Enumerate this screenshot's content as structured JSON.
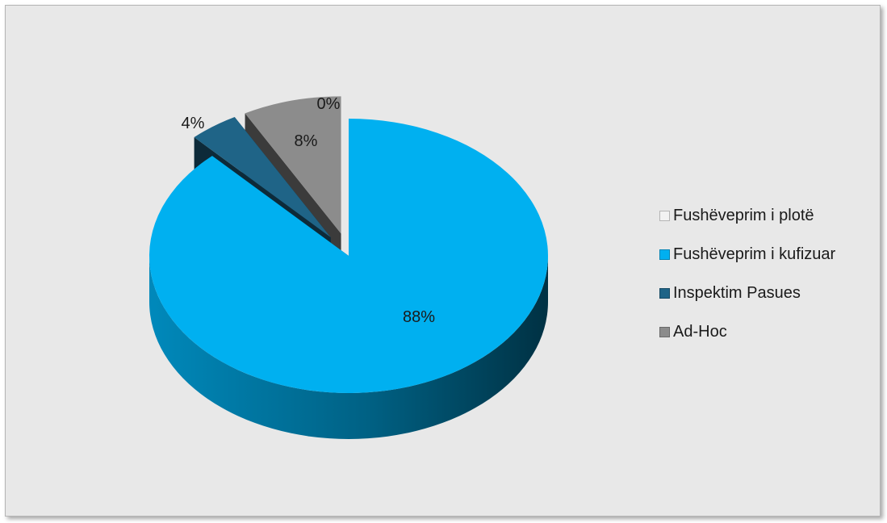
{
  "chart_data": {
    "type": "pie",
    "title": "",
    "categories": [
      "Fushëveprim i plotë",
      "Fushëveprim i kufizuar",
      "Inspektim Pasues",
      "Ad-Hoc"
    ],
    "values": [
      0,
      88,
      4,
      8
    ],
    "data_labels": [
      "0%",
      "88%",
      "4%",
      "8%"
    ],
    "colors": [
      "#f2f2f2",
      "#00b0f0",
      "#1f6487",
      "#8c8c8c"
    ],
    "exploded": [
      false,
      false,
      true,
      true
    ],
    "legend_position": "right",
    "style": "3d"
  }
}
